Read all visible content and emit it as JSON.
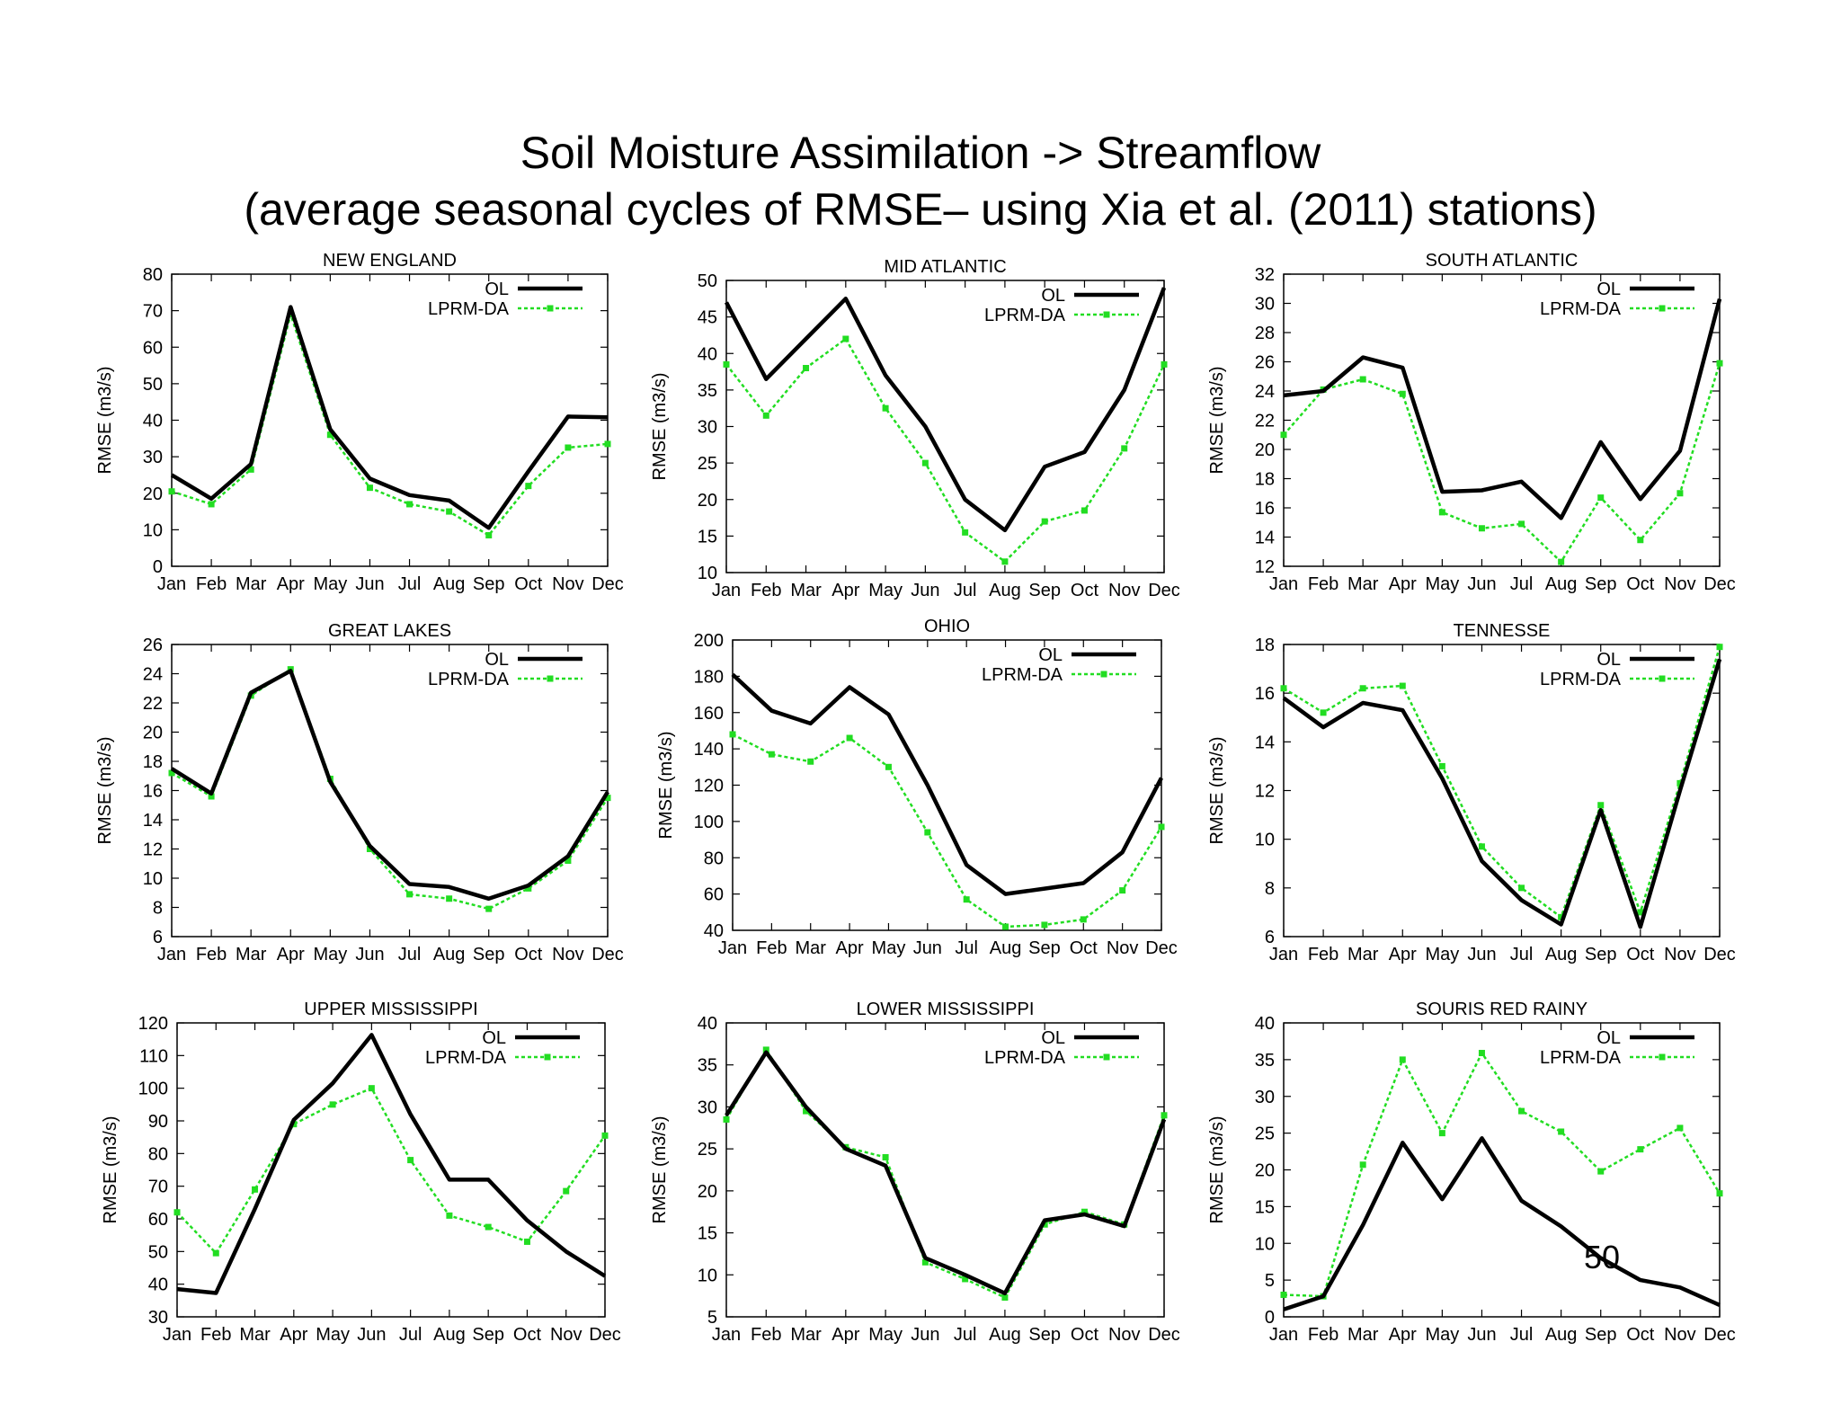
{
  "title": {
    "line1": "Soil Moisture Assimilation -> Streamflow",
    "line2": "(average seasonal cycles of RMSE– using Xia et al. (2011) stations)"
  },
  "slide_number": "50",
  "colors": {
    "ol": "#000000",
    "lprm": "#22dd22",
    "frame": "#000000"
  },
  "chart_data": [
    {
      "type": "line",
      "title": "NEW ENGLAND",
      "ylabel": "RMSE (m3/s)",
      "categories": [
        "Jan",
        "Feb",
        "Mar",
        "Apr",
        "May",
        "Jun",
        "Jul",
        "Aug",
        "Sep",
        "Oct",
        "Nov",
        "Dec"
      ],
      "ylim": [
        0,
        80
      ],
      "yticks": [
        0,
        10,
        20,
        30,
        40,
        50,
        60,
        70,
        80
      ],
      "series": [
        {
          "name": "OL",
          "values": [
            25,
            18.5,
            28,
            71,
            37.5,
            24,
            19.5,
            18,
            10.5,
            26,
            41,
            40.8
          ]
        },
        {
          "name": "LPRM-DA",
          "values": [
            20.5,
            17,
            26.5,
            69,
            36,
            21.5,
            17,
            15,
            8.5,
            22,
            32.5,
            33.5
          ]
        }
      ]
    },
    {
      "type": "line",
      "title": "MID ATLANTIC",
      "ylabel": "RMSE (m3/s)",
      "categories": [
        "Jan",
        "Feb",
        "Mar",
        "Apr",
        "May",
        "Jun",
        "Jul",
        "Aug",
        "Sep",
        "Oct",
        "Nov",
        "Dec"
      ],
      "ylim": [
        10,
        50
      ],
      "yticks": [
        10,
        15,
        20,
        25,
        30,
        35,
        40,
        45,
        50
      ],
      "series": [
        {
          "name": "OL",
          "values": [
            47,
            36.5,
            42,
            47.5,
            37,
            30,
            20,
            15.8,
            24.5,
            26.5,
            35,
            49
          ]
        },
        {
          "name": "LPRM-DA",
          "values": [
            38.5,
            31.5,
            38,
            42,
            32.5,
            25,
            15.5,
            11.5,
            17,
            18.5,
            27,
            38.5
          ]
        }
      ]
    },
    {
      "type": "line",
      "title": "SOUTH ATLANTIC",
      "ylabel": "RMSE (m3/s)",
      "categories": [
        "Jan",
        "Feb",
        "Mar",
        "Apr",
        "May",
        "Jun",
        "Jul",
        "Aug",
        "Sep",
        "Oct",
        "Nov",
        "Dec"
      ],
      "ylim": [
        12,
        32
      ],
      "yticks": [
        12,
        14,
        16,
        18,
        20,
        22,
        24,
        26,
        28,
        30,
        32
      ],
      "series": [
        {
          "name": "OL",
          "values": [
            23.7,
            24,
            26.3,
            25.6,
            17.1,
            17.2,
            17.8,
            15.3,
            20.5,
            16.6,
            19.9,
            30.3
          ]
        },
        {
          "name": "LPRM-DA",
          "values": [
            21,
            24.1,
            24.8,
            23.8,
            15.7,
            14.6,
            14.9,
            12.3,
            16.7,
            13.8,
            17,
            25.9
          ]
        }
      ]
    },
    {
      "type": "line",
      "title": "GREAT LAKES",
      "ylabel": "RMSE (m3/s)",
      "categories": [
        "Jan",
        "Feb",
        "Mar",
        "Apr",
        "May",
        "Jun",
        "Jul",
        "Aug",
        "Sep",
        "Oct",
        "Nov",
        "Dec"
      ],
      "ylim": [
        6,
        26
      ],
      "yticks": [
        6,
        8,
        10,
        12,
        14,
        16,
        18,
        20,
        22,
        24,
        26
      ],
      "series": [
        {
          "name": "OL",
          "values": [
            17.5,
            15.8,
            22.7,
            24.2,
            16.6,
            12.2,
            9.6,
            9.4,
            8.6,
            9.5,
            11.5,
            15.9
          ]
        },
        {
          "name": "LPRM-DA",
          "values": [
            17.2,
            15.6,
            22.5,
            24.3,
            16.8,
            12,
            8.9,
            8.6,
            7.9,
            9.3,
            11.2,
            15.5
          ]
        }
      ]
    },
    {
      "type": "line",
      "title": "OHIO",
      "ylabel": "RMSE (m3/s)",
      "categories": [
        "Jan",
        "Feb",
        "Mar",
        "Apr",
        "May",
        "Jun",
        "Jul",
        "Aug",
        "Sep",
        "Oct",
        "Nov",
        "Dec"
      ],
      "ylim": [
        40,
        200
      ],
      "yticks": [
        40,
        60,
        80,
        100,
        120,
        140,
        160,
        180,
        200
      ],
      "series": [
        {
          "name": "OL",
          "values": [
            181,
            161,
            154,
            174,
            159,
            120,
            76,
            60,
            63,
            66,
            83,
            124
          ]
        },
        {
          "name": "LPRM-DA",
          "values": [
            148,
            137,
            133,
            146,
            130,
            94,
            57,
            42,
            43,
            46,
            62,
            97
          ]
        }
      ]
    },
    {
      "type": "line",
      "title": "TENNESSE",
      "ylabel": "RMSE (m3/s)",
      "categories": [
        "Jan",
        "Feb",
        "Mar",
        "Apr",
        "May",
        "Jun",
        "Jul",
        "Aug",
        "Sep",
        "Oct",
        "Nov",
        "Dec"
      ],
      "ylim": [
        6,
        18
      ],
      "yticks": [
        6,
        8,
        10,
        12,
        14,
        16,
        18
      ],
      "series": [
        {
          "name": "OL",
          "values": [
            15.8,
            14.6,
            15.6,
            15.3,
            12.5,
            9.1,
            7.5,
            6.5,
            11.2,
            6.4,
            12,
            17.4
          ]
        },
        {
          "name": "LPRM-DA",
          "values": [
            16.2,
            15.2,
            16.2,
            16.3,
            13,
            9.7,
            8,
            6.8,
            11.4,
            7,
            12.3,
            17.9
          ]
        }
      ]
    },
    {
      "type": "line",
      "title": "UPPER MISSISSIPPI",
      "ylabel": "RMSE (m3/s)",
      "categories": [
        "Jan",
        "Feb",
        "Mar",
        "Apr",
        "May",
        "Jun",
        "Jul",
        "Aug",
        "Sep",
        "Oct",
        "Nov",
        "Dec"
      ],
      "ylim": [
        30,
        120
      ],
      "yticks": [
        30,
        40,
        50,
        60,
        70,
        80,
        90,
        100,
        110,
        120
      ],
      "series": [
        {
          "name": "OL",
          "values": [
            38.5,
            37.3,
            63,
            90.3,
            101.5,
            116.3,
            92,
            72,
            72,
            59.5,
            50,
            42.5
          ]
        },
        {
          "name": "LPRM-DA",
          "values": [
            62,
            49.5,
            69,
            89,
            95,
            100,
            78,
            61,
            57.5,
            53,
            68.5,
            85.5
          ]
        }
      ]
    },
    {
      "type": "line",
      "title": "LOWER MISSISSIPPI",
      "ylabel": "RMSE (m3/s)",
      "categories": [
        "Jan",
        "Feb",
        "Mar",
        "Apr",
        "May",
        "Jun",
        "Jul",
        "Aug",
        "Sep",
        "Oct",
        "Nov",
        "Dec"
      ],
      "ylim": [
        5,
        40
      ],
      "yticks": [
        5,
        10,
        15,
        20,
        25,
        30,
        35,
        40
      ],
      "series": [
        {
          "name": "OL",
          "values": [
            29,
            36.5,
            30,
            25,
            23,
            12,
            10,
            7.8,
            16.5,
            17.2,
            15.8,
            28.5
          ]
        },
        {
          "name": "LPRM-DA",
          "values": [
            28.5,
            36.8,
            29.5,
            25.2,
            24,
            11.5,
            9.5,
            7.3,
            16,
            17.5,
            16,
            29
          ]
        }
      ]
    },
    {
      "type": "line",
      "title": "SOURIS RED RAINY",
      "ylabel": "RMSE (m3/s)",
      "categories": [
        "Jan",
        "Feb",
        "Mar",
        "Apr",
        "May",
        "Jun",
        "Jul",
        "Aug",
        "Sep",
        "Oct",
        "Nov",
        "Dec"
      ],
      "ylim": [
        0,
        40
      ],
      "yticks": [
        0,
        5,
        10,
        15,
        20,
        25,
        30,
        35,
        40
      ],
      "series": [
        {
          "name": "OL",
          "values": [
            1,
            2.8,
            12.5,
            23.7,
            16,
            24.3,
            15.8,
            12.3,
            8,
            5,
            4,
            1.6
          ]
        },
        {
          "name": "LPRM-DA",
          "values": [
            3,
            2.8,
            20.7,
            35,
            25,
            35.9,
            28,
            25.2,
            19.8,
            22.8,
            25.7,
            16.8
          ]
        }
      ]
    }
  ]
}
